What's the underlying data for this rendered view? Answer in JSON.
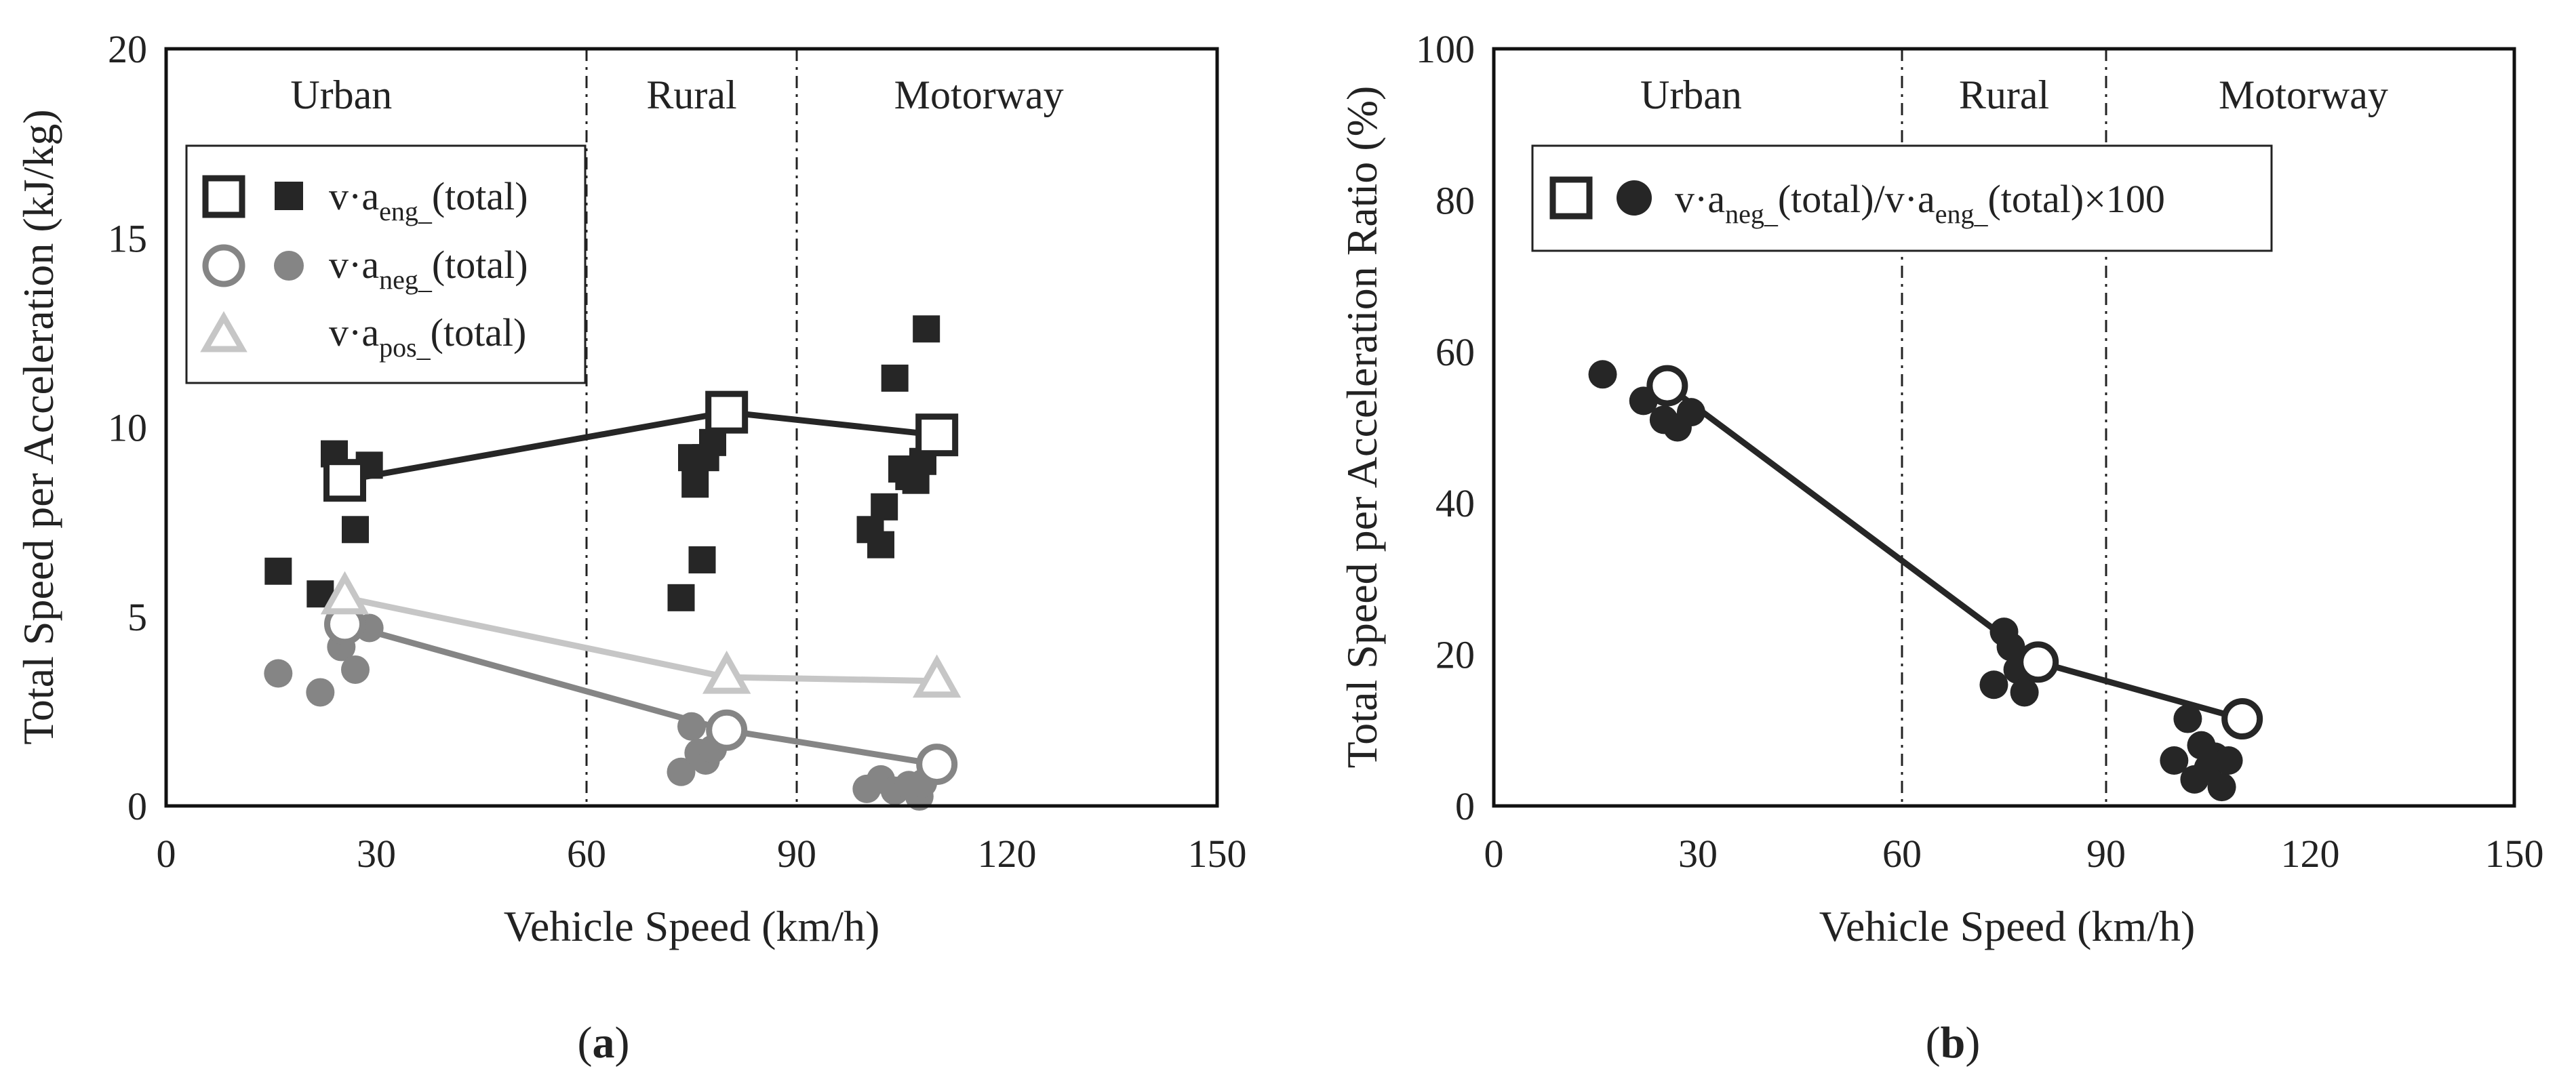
{
  "colors": {
    "eng": "#262626",
    "neg": "#858585",
    "pos": "#c6c6c6",
    "ratio": "#262626",
    "divider": "#222222"
  },
  "chart_data": [
    {
      "panel": "(a)",
      "panel_letter": "a",
      "type": "scatter",
      "title": "",
      "xlabel": "Vehicle Speed (km/h)",
      "ylabel": "Total Speed per Acceleration (kJ/kg)",
      "xlim": [
        0,
        150
      ],
      "ylim": [
        0,
        20
      ],
      "xticks": [
        "0",
        "30",
        "60",
        "90",
        "120",
        "150"
      ],
      "yticks": [
        "0",
        "5",
        "10",
        "15",
        "20"
      ],
      "grid": false,
      "boundaries": [
        60,
        90
      ],
      "regions": [
        {
          "label": "Urban",
          "x": 25
        },
        {
          "label": "Rural",
          "x": 75
        },
        {
          "label": "Motorway",
          "x": 116
        }
      ],
      "legend_position": "top-left",
      "series": [
        {
          "name": "v·aeng_(total)",
          "legend_main": "v·a",
          "legend_sub": "eng_",
          "legend_tail": "(total)",
          "color_key": "eng",
          "marker": "square",
          "points": [
            [
              16,
              6.2
            ],
            [
              22,
              5.6
            ],
            [
              24,
              9.3
            ],
            [
              25,
              8.8
            ],
            [
              27,
              7.3
            ],
            [
              29,
              9.0
            ],
            [
              73.5,
              5.5
            ],
            [
              75,
              9.2
            ],
            [
              75.5,
              8.5
            ],
            [
              76.5,
              6.5
            ],
            [
              77,
              9.2
            ],
            [
              78,
              9.6
            ],
            [
              100.5,
              7.3
            ],
            [
              102,
              6.9
            ],
            [
              102.5,
              7.9
            ],
            [
              104,
              11.3
            ],
            [
              105,
              8.9
            ],
            [
              106,
              8.7
            ],
            [
              107,
              8.6
            ],
            [
              108,
              9.1
            ],
            [
              108.5,
              12.6
            ]
          ],
          "means": [
            [
              25.5,
              8.6
            ],
            [
              80,
              10.4
            ],
            [
              110,
              9.8
            ]
          ]
        },
        {
          "name": "v·aneg_(total)",
          "legend_main": "v·a",
          "legend_sub": "neg_",
          "legend_tail": "(total)",
          "color_key": "neg",
          "marker": "circle",
          "points": [
            [
              16,
              3.5
            ],
            [
              22,
              3.0
            ],
            [
              25,
              4.2
            ],
            [
              27,
              3.6
            ],
            [
              29,
              4.7
            ],
            [
              73.5,
              0.9
            ],
            [
              75,
              2.1
            ],
            [
              76,
              1.4
            ],
            [
              77,
              1.2
            ],
            [
              78,
              1.5
            ],
            [
              100,
              0.45
            ],
            [
              102,
              0.7
            ],
            [
              104,
              0.4
            ],
            [
              106,
              0.55
            ],
            [
              107.5,
              0.25
            ],
            [
              108,
              0.6
            ]
          ],
          "means": [
            [
              25.5,
              4.8
            ],
            [
              80,
              2.0
            ],
            [
              110,
              1.1
            ]
          ]
        },
        {
          "name": "v·apos_(total)",
          "legend_main": "v·a",
          "legend_sub": "pos_",
          "legend_tail": "(total)",
          "color_key": "pos",
          "marker": "triangle",
          "points": [],
          "means": [
            [
              25.5,
              5.5
            ],
            [
              80,
              3.4
            ],
            [
              110,
              3.3
            ]
          ]
        }
      ]
    },
    {
      "panel": "(b)",
      "panel_letter": "b",
      "type": "scatter",
      "title": "",
      "xlabel": "Vehicle Speed (km/h)",
      "ylabel": "Total Speed per Acceleration Ratio (%)",
      "xlim": [
        0,
        150
      ],
      "ylim": [
        0,
        100
      ],
      "xticks": [
        "0",
        "30",
        "60",
        "90",
        "120",
        "150"
      ],
      "yticks": [
        "0",
        "20",
        "40",
        "60",
        "80",
        "100"
      ],
      "grid": false,
      "boundaries": [
        60,
        90
      ],
      "regions": [
        {
          "label": "Urban",
          "x": 29
        },
        {
          "label": "Rural",
          "x": 75
        },
        {
          "label": "Motorway",
          "x": 119
        }
      ],
      "legend_position": "top-left",
      "series": [
        {
          "name": "v·aneg_(total)/v·aeng_(total)×100",
          "legend_main": "v·a",
          "legend_sub": "neg_",
          "legend_tail": "(total)/v·a",
          "legend_sub2": "eng_",
          "legend_tail2": "(total)×100",
          "color_key": "ratio",
          "marker": "circle",
          "points": [
            [
              16,
              57
            ],
            [
              22,
              53.5
            ],
            [
              25,
              51
            ],
            [
              27,
              50
            ],
            [
              29,
              52
            ],
            [
              73.5,
              16
            ],
            [
              75,
              23
            ],
            [
              76,
              21
            ],
            [
              77,
              18
            ],
            [
              78,
              15
            ],
            [
              100,
              6
            ],
            [
              102,
              11.5
            ],
            [
              103,
              3.5
            ],
            [
              104,
              8
            ],
            [
              105,
              5
            ],
            [
              106,
              6.5
            ],
            [
              107,
              2.5
            ],
            [
              108,
              6
            ]
          ],
          "means": [
            [
              25.5,
              55.5
            ],
            [
              80,
              19
            ],
            [
              110,
              11.5
            ]
          ]
        }
      ]
    }
  ]
}
